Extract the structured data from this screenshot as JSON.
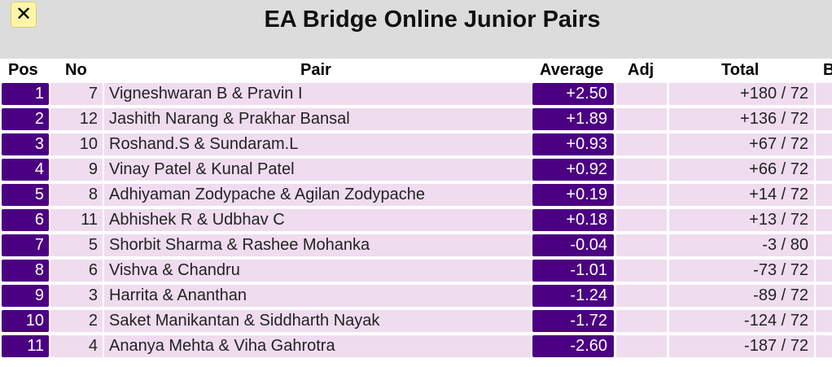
{
  "header": {
    "close_label": "✕",
    "title": "EA Bridge Online Junior Pairs"
  },
  "table": {
    "columns": {
      "pos": "Pos",
      "no": "No",
      "pair": "Pair",
      "average": "Average",
      "adj": "Adj",
      "total": "Total",
      "extra": "B"
    },
    "rows": [
      {
        "pos": "1",
        "no": "7",
        "pair": "Vigneshwaran B & Pravin I",
        "average": "+2.50",
        "adj": "",
        "total": "+180 / 72"
      },
      {
        "pos": "2",
        "no": "12",
        "pair": "Jashith Narang & Prakhar Bansal",
        "average": "+1.89",
        "adj": "",
        "total": "+136 / 72"
      },
      {
        "pos": "3",
        "no": "10",
        "pair": "Roshand.S & Sundaram.L",
        "average": "+0.93",
        "adj": "",
        "total": "+67 / 72"
      },
      {
        "pos": "4",
        "no": "9",
        "pair": "Vinay Patel & Kunal Patel",
        "average": "+0.92",
        "adj": "",
        "total": "+66 / 72"
      },
      {
        "pos": "5",
        "no": "8",
        "pair": "Adhiyaman Zodypache & Agilan Zodypache",
        "average": "+0.19",
        "adj": "",
        "total": "+14 / 72"
      },
      {
        "pos": "6",
        "no": "11",
        "pair": "Abhishek R & Udbhav C",
        "average": "+0.18",
        "adj": "",
        "total": "+13 / 72"
      },
      {
        "pos": "7",
        "no": "5",
        "pair": "Shorbit Sharma & Rashee Mohanka",
        "average": "-0.04",
        "adj": "",
        "total": "-3 / 80"
      },
      {
        "pos": "8",
        "no": "6",
        "pair": "Vishva & Chandru",
        "average": "-1.01",
        "adj": "",
        "total": "-73 / 72"
      },
      {
        "pos": "9",
        "no": "3",
        "pair": "Harrita & Ananthan",
        "average": "-1.24",
        "adj": "",
        "total": "-89 / 72"
      },
      {
        "pos": "10",
        "no": "2",
        "pair": "Saket Manikantan & Siddharth Nayak",
        "average": "-1.72",
        "adj": "",
        "total": "-124 / 72"
      },
      {
        "pos": "11",
        "no": "4",
        "pair": "Ananya Mehta & Viha Gahrotra",
        "average": "-2.60",
        "adj": "",
        "total": "-187 / 72"
      }
    ]
  },
  "colors": {
    "accent": "#4b0082",
    "row_background": "#efdcef",
    "page_background": "#dcdcdc",
    "close_button": "#fdf5a8"
  }
}
